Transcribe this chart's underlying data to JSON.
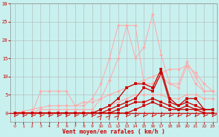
{
  "xlabel": "Vent moyen/en rafales ( km/h )",
  "background_color": "#c8f0ee",
  "grid_color": "#b0b0b0",
  "x_ticks": [
    0,
    1,
    2,
    3,
    4,
    5,
    6,
    7,
    8,
    9,
    10,
    11,
    12,
    13,
    14,
    15,
    16,
    17,
    18,
    19,
    20,
    21,
    22,
    23
  ],
  "ylim": [
    0,
    30
  ],
  "xlim": [
    -0.5,
    23.5
  ],
  "yticks": [
    0,
    5,
    10,
    15,
    20,
    25,
    30
  ],
  "lines": [
    {
      "color": "#ffaaaa",
      "x": [
        0,
        1,
        2,
        3,
        4,
        5,
        6,
        7,
        8,
        9,
        10,
        11,
        12,
        13,
        14,
        15,
        16,
        17,
        18,
        19,
        20,
        21,
        22,
        23
      ],
      "y": [
        0,
        0,
        0,
        6,
        6,
        6,
        6,
        2,
        2,
        4,
        8,
        15,
        24,
        24,
        15,
        18,
        27,
        16,
        8,
        8,
        14,
        10,
        6,
        6
      ],
      "marker": "D",
      "markersize": 2.5,
      "linewidth": 0.8
    },
    {
      "color": "#ffaaaa",
      "x": [
        0,
        1,
        2,
        3,
        4,
        5,
        6,
        7,
        8,
        9,
        10,
        11,
        12,
        13,
        14,
        15,
        16,
        17,
        18,
        19,
        20,
        21,
        22,
        23
      ],
      "y": [
        0,
        0,
        0,
        1,
        1,
        1,
        1,
        1,
        1,
        1,
        4,
        9,
        15,
        24,
        24,
        8,
        8,
        10,
        8,
        7,
        13,
        8,
        6,
        6
      ],
      "marker": "D",
      "markersize": 2.5,
      "linewidth": 0.8
    },
    {
      "color": "#ffaaaa",
      "x": [
        0,
        1,
        2,
        3,
        4,
        5,
        6,
        7,
        8,
        9,
        10,
        11,
        12,
        13,
        14,
        15,
        16,
        17,
        18,
        19,
        20,
        21,
        22,
        23
      ],
      "y": [
        0,
        0.5,
        1,
        1.5,
        2,
        2,
        2,
        2,
        3,
        3,
        4,
        5,
        6,
        7,
        8,
        9,
        10,
        11,
        12,
        12,
        13,
        11,
        8,
        6
      ],
      "marker": "D",
      "markersize": 2.5,
      "linewidth": 0.8
    },
    {
      "color": "#ffaaaa",
      "x": [
        0,
        1,
        2,
        3,
        4,
        5,
        6,
        7,
        8,
        9,
        10,
        11,
        12,
        13,
        14,
        15,
        16,
        17,
        18,
        19,
        20,
        21,
        22,
        23
      ],
      "y": [
        0,
        0,
        0,
        0,
        0,
        0,
        0,
        0,
        0,
        0,
        1,
        2,
        3,
        4,
        5,
        5,
        5,
        5,
        4,
        4,
        5,
        5,
        4,
        4
      ],
      "marker": "D",
      "markersize": 2.5,
      "linewidth": 0.8
    },
    {
      "color": "#cc0000",
      "x": [
        0,
        1,
        2,
        3,
        4,
        5,
        6,
        7,
        8,
        9,
        10,
        11,
        12,
        13,
        14,
        15,
        16,
        17,
        18,
        19,
        20,
        21,
        22,
        23
      ],
      "y": [
        0,
        0,
        0,
        0,
        0,
        0,
        0,
        0,
        0,
        0,
        1,
        2,
        4,
        7,
        8,
        8,
        7,
        12,
        4,
        2,
        4,
        4,
        1,
        1
      ],
      "marker": "s",
      "markersize": 2.5,
      "linewidth": 1.0
    },
    {
      "color": "#cc0000",
      "x": [
        0,
        1,
        2,
        3,
        4,
        5,
        6,
        7,
        8,
        9,
        10,
        11,
        12,
        13,
        14,
        15,
        16,
        17,
        18,
        19,
        20,
        21,
        22,
        23
      ],
      "y": [
        0,
        0,
        0,
        0,
        0,
        0,
        0,
        0,
        0,
        0,
        0,
        1,
        2,
        3,
        4,
        7,
        6,
        11,
        3,
        2,
        3,
        2,
        1,
        1
      ],
      "marker": "s",
      "markersize": 2.5,
      "linewidth": 1.0
    },
    {
      "color": "#cc0000",
      "x": [
        0,
        1,
        2,
        3,
        4,
        5,
        6,
        7,
        8,
        9,
        10,
        11,
        12,
        13,
        14,
        15,
        16,
        17,
        18,
        19,
        20,
        21,
        22,
        23
      ],
      "y": [
        0,
        0,
        0,
        0,
        0,
        0,
        0,
        0,
        0,
        0,
        0,
        0,
        1,
        2,
        3,
        3,
        4,
        3,
        2,
        1,
        1,
        1,
        1,
        1
      ],
      "marker": "s",
      "markersize": 2.5,
      "linewidth": 1.0
    },
    {
      "color": "#cc0000",
      "x": [
        0,
        1,
        2,
        3,
        4,
        5,
        6,
        7,
        8,
        9,
        10,
        11,
        12,
        13,
        14,
        15,
        16,
        17,
        18,
        19,
        20,
        21,
        22,
        23
      ],
      "y": [
        0,
        0,
        0,
        0,
        0,
        0,
        0,
        0,
        0,
        0,
        0,
        0,
        0,
        0,
        1,
        2,
        3,
        2,
        1,
        1,
        2,
        1,
        0,
        0
      ],
      "marker": "s",
      "markersize": 2.5,
      "linewidth": 1.0
    }
  ],
  "arrow_angles": [
    225,
    225,
    225,
    225,
    225,
    225,
    225,
    225,
    225,
    225,
    45,
    45,
    45,
    225,
    225,
    225,
    225,
    225,
    225,
    225,
    225,
    225,
    225,
    225
  ],
  "hline_color": "#cc0000"
}
